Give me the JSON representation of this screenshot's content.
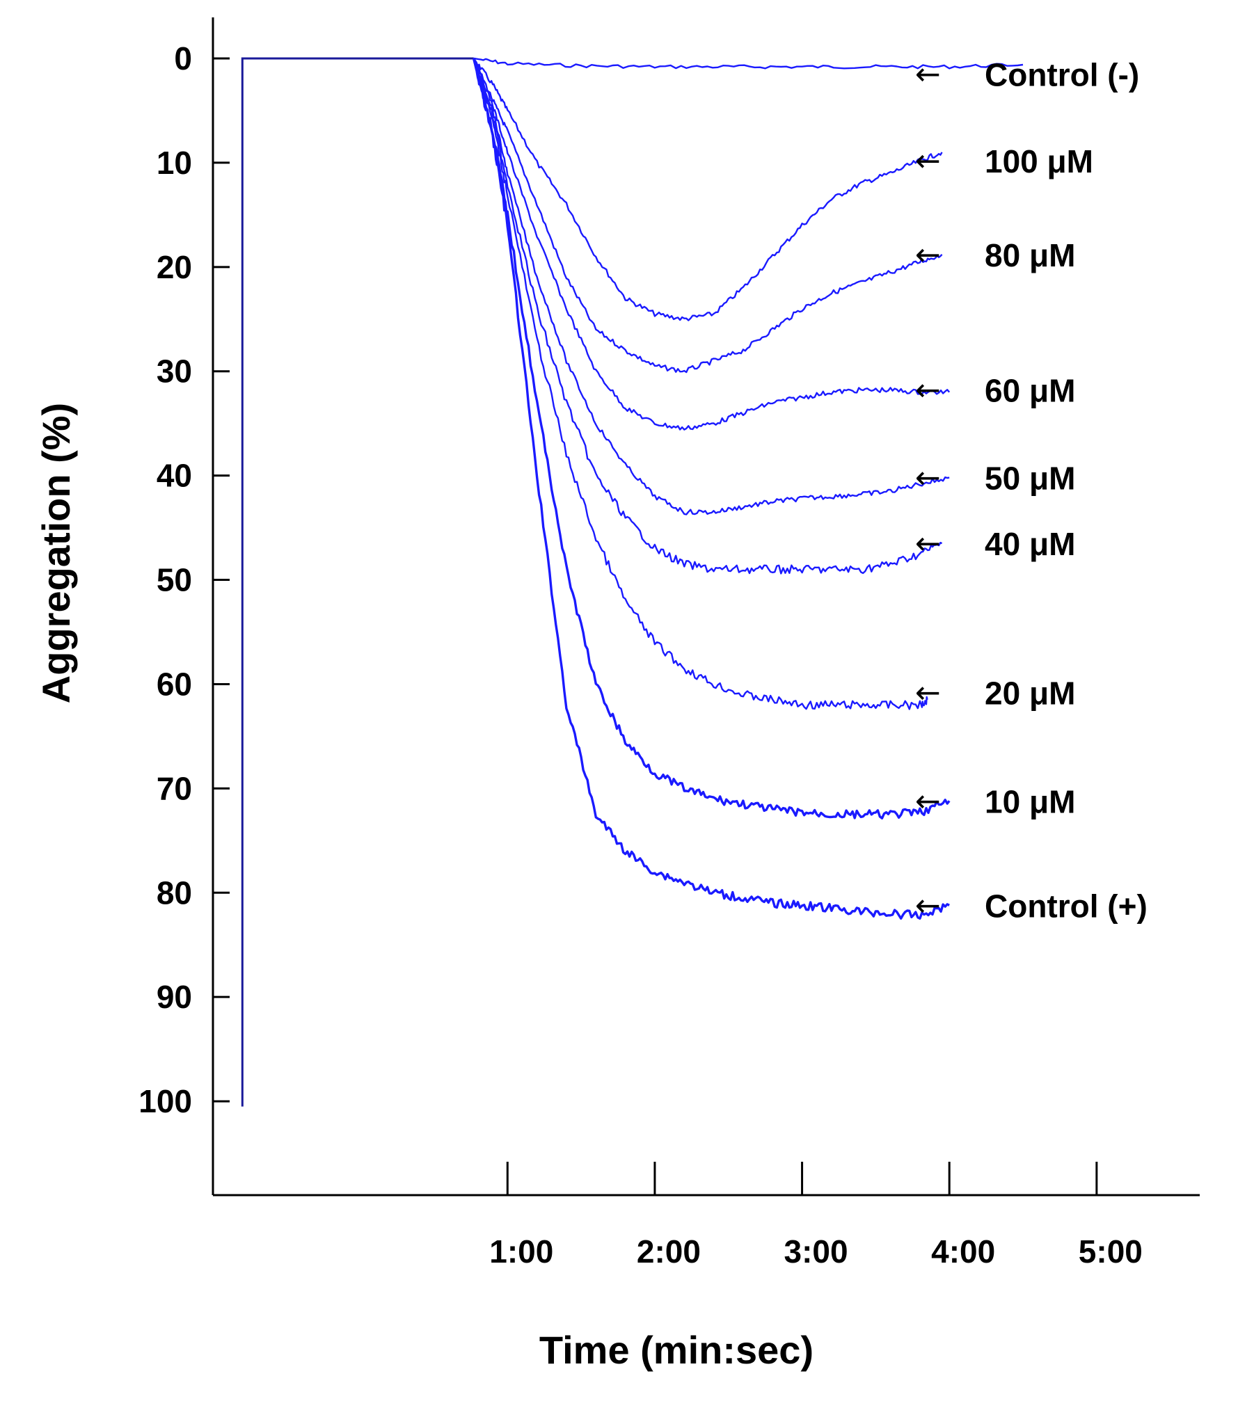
{
  "chart_data": {
    "type": "line",
    "title": "",
    "xlabel": "Time (min:sec)",
    "ylabel": "Aggregation (%)",
    "xlim": [
      -1.0,
      5.7
    ],
    "ylim": [
      0,
      109
    ],
    "y_inverted": true,
    "xticks": [
      1,
      2,
      3,
      4,
      5
    ],
    "xtick_labels": [
      "1:00",
      "2:00",
      "3:00",
      "4:00",
      "5:00"
    ],
    "yticks": [
      0,
      10,
      20,
      30,
      40,
      50,
      60,
      70,
      80,
      90,
      100
    ],
    "ytick_labels": [
      "0",
      "10",
      "20",
      "30",
      "40",
      "50",
      "60",
      "70",
      "80",
      "90",
      "100"
    ],
    "grid": false,
    "line_color": "#1a1aff",
    "baseline": {
      "x": [
        -0.8,
        -0.8,
        0.77
      ],
      "y": [
        100.5,
        0,
        0
      ]
    },
    "arrow_symbol": "←",
    "series": [
      {
        "name": "Control (-)",
        "label": "Control (-)",
        "label_y": 1.5,
        "x": [
          0.77,
          1.0,
          1.5,
          2.0,
          2.5,
          3.0,
          3.5,
          4.0,
          4.5
        ],
        "y": [
          0,
          0.5,
          0.7,
          0.8,
          0.8,
          0.8,
          0.8,
          0.8,
          0.6
        ]
      },
      {
        "name": "100 μM",
        "label": "100 μM",
        "label_y": 9.8,
        "x": [
          0.77,
          0.9,
          1.0,
          1.2,
          1.4,
          1.6,
          1.8,
          2.0,
          2.2,
          2.4,
          2.6,
          2.8,
          3.0,
          3.2,
          3.4,
          3.6,
          3.8,
          3.95
        ],
        "y": [
          0,
          2.5,
          5,
          10,
          14,
          19,
          23,
          24.5,
          25,
          24.5,
          22,
          19,
          16,
          13.5,
          12,
          11,
          9.8,
          9
        ]
      },
      {
        "name": "80 μM",
        "label": "80 μM",
        "label_y": 18.8,
        "x": [
          0.77,
          0.9,
          1.0,
          1.2,
          1.4,
          1.6,
          1.8,
          2.0,
          2.2,
          2.4,
          2.6,
          2.8,
          3.0,
          3.2,
          3.4,
          3.6,
          3.8,
          3.95
        ],
        "y": [
          0,
          4,
          7,
          14,
          21,
          26,
          28,
          29.5,
          30,
          29,
          28,
          26,
          24,
          22.5,
          21.5,
          20.5,
          19.5,
          18.8
        ]
      },
      {
        "name": "60 μM",
        "label": "60 μM",
        "label_y": 31.8,
        "x": [
          0.77,
          0.9,
          1.0,
          1.2,
          1.4,
          1.6,
          1.8,
          2.0,
          2.2,
          2.4,
          2.6,
          2.8,
          3.0,
          3.2,
          3.4,
          3.6,
          3.8,
          4.0
        ],
        "y": [
          0,
          4.5,
          9,
          17,
          24,
          30,
          33.5,
          35,
          35.5,
          35,
          34,
          33,
          32.5,
          32,
          31.8,
          31.8,
          32,
          32
        ]
      },
      {
        "name": "50 μM",
        "label": "50 μM",
        "label_y": 40.2,
        "x": [
          0.77,
          0.9,
          1.0,
          1.2,
          1.4,
          1.6,
          1.8,
          2.0,
          2.2,
          2.4,
          2.6,
          2.8,
          3.0,
          3.2,
          3.4,
          3.6,
          3.8,
          4.0
        ],
        "y": [
          0,
          5,
          11,
          21,
          29,
          35,
          39,
          42,
          43.5,
          43.5,
          43,
          42.5,
          42.2,
          42,
          41.8,
          41.5,
          40.8,
          40.2
        ]
      },
      {
        "name": "40 μM",
        "label": "40 μM",
        "label_y": 46.5,
        "x": [
          0.77,
          0.9,
          1.0,
          1.2,
          1.4,
          1.6,
          1.8,
          2.0,
          2.2,
          2.4,
          2.6,
          2.8,
          3.0,
          3.2,
          3.4,
          3.6,
          3.8,
          3.95
        ],
        "y": [
          0,
          5.5,
          12,
          24,
          33,
          40,
          44,
          47,
          48.5,
          49,
          49,
          49,
          49,
          49,
          49,
          48.5,
          47.5,
          46.5
        ]
      },
      {
        "name": "20 μM",
        "label": "20 μM",
        "label_y": 60.8,
        "x": [
          0.77,
          0.9,
          1.0,
          1.2,
          1.4,
          1.6,
          1.8,
          2.0,
          2.2,
          2.4,
          2.6,
          2.8,
          3.0,
          3.2,
          3.4,
          3.6,
          3.8,
          3.85
        ],
        "y": [
          0,
          6,
          13,
          27,
          38,
          46,
          52,
          56,
          58.5,
          60,
          61,
          61.5,
          62,
          62,
          62,
          62,
          62,
          61.5
        ]
      },
      {
        "name": "10 μM",
        "label": "10 μM",
        "label_y": 71.2,
        "x": [
          0.77,
          0.9,
          1.0,
          1.2,
          1.4,
          1.6,
          1.8,
          2.0,
          2.2,
          2.4,
          2.6,
          2.8,
          3.0,
          3.2,
          3.4,
          3.6,
          3.8,
          4.0
        ],
        "y": [
          0,
          7,
          15,
          33,
          49,
          60,
          65.5,
          68.5,
          70,
          71,
          71.5,
          72,
          72.3,
          72.5,
          72.5,
          72.5,
          72.3,
          71.2
        ]
      },
      {
        "name": "Control (+)",
        "label": "Control (+)",
        "label_y": 81.2,
        "x": [
          0.77,
          0.9,
          1.0,
          1.2,
          1.4,
          1.6,
          1.8,
          2.0,
          2.2,
          2.4,
          2.6,
          2.8,
          3.0,
          3.2,
          3.4,
          3.6,
          3.8,
          4.0
        ],
        "y": [
          0,
          7.5,
          16,
          40,
          62,
          72.5,
          76,
          78,
          79,
          80,
          80.5,
          81,
          81.2,
          81.5,
          81.8,
          82,
          82.2,
          81.2
        ]
      }
    ]
  }
}
